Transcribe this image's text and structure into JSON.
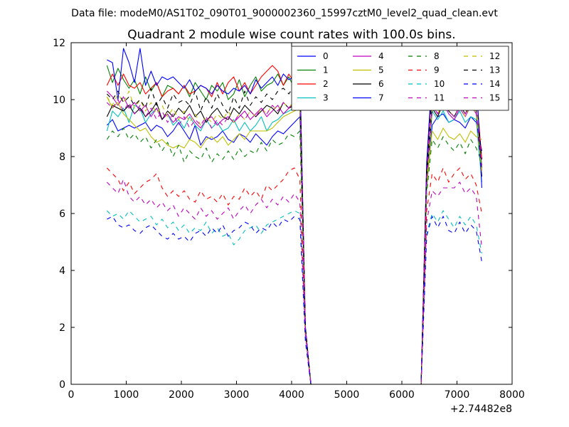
{
  "chart_data": {
    "type": "line",
    "suptitle": "Data file: modeM0/AS1T02_090T01_9000002360_15997cztM0_level2_quad_clean.evt",
    "title": "Quadrant 2 module wise count rates with 100.0s bins.",
    "xlabel": "",
    "ylabel": "",
    "x_offset_label": "+2.74482e8",
    "xlim": [
      0,
      8000
    ],
    "ylim": [
      0,
      12
    ],
    "xticks": [
      0,
      1000,
      2000,
      3000,
      4000,
      5000,
      6000,
      7000,
      8000
    ],
    "yticks": [
      0,
      2,
      4,
      6,
      8,
      10,
      12
    ],
    "xtick_labels": [
      "0",
      "1000",
      "2000",
      "3000",
      "4000",
      "5000",
      "6000",
      "7000",
      "8000"
    ],
    "ytick_labels": [
      "0",
      "2",
      "4",
      "6",
      "8",
      "10",
      "12"
    ],
    "legend_position": "top-right",
    "legend_columns": 4,
    "x": [
      650,
      750,
      850,
      950,
      1050,
      1150,
      1250,
      1350,
      1450,
      1550,
      1650,
      1750,
      1850,
      1950,
      2050,
      2150,
      2250,
      2350,
      2450,
      2550,
      2650,
      2750,
      2850,
      2950,
      3050,
      3150,
      3250,
      3350,
      3450,
      3550,
      3650,
      3750,
      3850,
      3950,
      4050,
      4150,
      4250,
      4350,
      6350,
      6450,
      6550,
      6650,
      6750,
      6850,
      6950,
      7050,
      7150,
      7250,
      7350,
      7450
    ],
    "series": [
      {
        "name": "0",
        "color": "#0000ff",
        "dash": false,
        "values": [
          9.1,
          9.3,
          8.9,
          9.0,
          9.1,
          9.0,
          9.1,
          9.2,
          8.9,
          9.1,
          9.0,
          8.7,
          8.9,
          9.2,
          8.9,
          8.6,
          9.1,
          8.4,
          8.7,
          8.6,
          8.7,
          8.9,
          8.6,
          8.5,
          8.8,
          8.7,
          8.5,
          8.8,
          8.6,
          8.4,
          8.7,
          8.9,
          8.8,
          9.0,
          9.2,
          9.4,
          2.0,
          0,
          0,
          6.9,
          9.1,
          9.4,
          9.5,
          9.2,
          9.3,
          9.2,
          9.0,
          9.4,
          9.2,
          8.2
        ]
      },
      {
        "name": "1",
        "color": "#008000",
        "dash": false,
        "values": [
          11.2,
          10.6,
          11.1,
          10.7,
          10.4,
          10.7,
          10.2,
          10.8,
          10.3,
          10.6,
          10.1,
          10.5,
          10.4,
          10.2,
          10.5,
          10.1,
          10.6,
          10.3,
          10.0,
          10.5,
          10.3,
          10.6,
          10.0,
          10.2,
          10.7,
          10.1,
          10.5,
          10.8,
          10.3,
          10.5,
          10.6,
          10.9,
          10.5,
          10.8,
          10.4,
          11.1,
          1.9,
          0,
          0,
          7.7,
          10.9,
          10.3,
          10.8,
          10.5,
          10.3,
          10.6,
          10.3,
          10.8,
          10.4,
          7.6
        ]
      },
      {
        "name": "2",
        "color": "#ff0000",
        "dash": false,
        "values": [
          10.5,
          10.9,
          10.5,
          10.9,
          10.5,
          10.4,
          10.6,
          10.2,
          10.4,
          10.6,
          10.1,
          10.3,
          10.4,
          10.2,
          10.5,
          10.2,
          10.3,
          10.5,
          10.4,
          10.1,
          10.6,
          10.2,
          10.6,
          10.8,
          10.3,
          10.6,
          10.2,
          10.5,
          10.8,
          11.0,
          11.2,
          11.0,
          10.5,
          10.9,
          10.6,
          10.9,
          1.9,
          0,
          0,
          7.6,
          10.7,
          10.5,
          10.8,
          10.4,
          10.6,
          10.1,
          10.5,
          10.8,
          10.3,
          7.9
        ]
      },
      {
        "name": "3",
        "color": "#00bfbf",
        "dash": false,
        "values": [
          8.9,
          9.6,
          9.4,
          9.7,
          9.2,
          9.8,
          9.7,
          9.2,
          9.5,
          9.7,
          9.3,
          9.5,
          9.1,
          9.3,
          9.0,
          9.4,
          9.1,
          8.9,
          9.3,
          9.0,
          9.2,
          8.9,
          9.0,
          9.3,
          8.9,
          9.2,
          8.9,
          9.1,
          9.4,
          8.9,
          9.2,
          9.3,
          9.5,
          9.6,
          9.7,
          9.8,
          1.9,
          0,
          0,
          7.1,
          9.6,
          9.3,
          9.6,
          9.2,
          9.3,
          9.6,
          9.2,
          9.4,
          9.3,
          7.1
        ]
      },
      {
        "name": "4",
        "color": "#bf00bf",
        "dash": false,
        "values": [
          10.3,
          10.1,
          9.8,
          10.1,
          9.7,
          9.9,
          9.6,
          9.8,
          9.4,
          9.7,
          9.3,
          9.5,
          9.2,
          9.4,
          9.3,
          9.5,
          9.2,
          9.0,
          9.3,
          9.4,
          9.1,
          9.3,
          9.4,
          9.2,
          9.4,
          9.6,
          9.3,
          9.5,
          9.7,
          9.4,
          9.6,
          9.8,
          9.5,
          9.7,
          9.9,
          10.0,
          1.9,
          0,
          0,
          7.3,
          9.8,
          9.5,
          9.9,
          9.5,
          9.3,
          9.7,
          9.4,
          9.8,
          9.5,
          7.5
        ]
      },
      {
        "name": "5",
        "color": "#bfbf00",
        "dash": false,
        "values": [
          10.1,
          9.7,
          9.9,
          9.5,
          9.3,
          9.1,
          8.9,
          9.0,
          8.7,
          8.5,
          8.6,
          8.4,
          8.3,
          8.4,
          8.3,
          8.6,
          8.5,
          8.3,
          8.6,
          8.7,
          8.5,
          8.7,
          8.4,
          8.6,
          8.8,
          8.6,
          8.9,
          8.9,
          8.9,
          8.9,
          9.0,
          9.2,
          9.4,
          9.5,
          9.6,
          9.7,
          1.9,
          0,
          0,
          7.0,
          8.9,
          8.6,
          9.0,
          8.7,
          8.6,
          8.8,
          8.5,
          8.9,
          8.7,
          8.6
        ]
      },
      {
        "name": "6",
        "color": "#000000",
        "dash": false,
        "values": [
          9.4,
          9.8,
          9.7,
          9.6,
          9.8,
          9.5,
          9.7,
          9.4,
          9.6,
          9.9,
          9.3,
          9.6,
          9.4,
          9.7,
          9.5,
          9.8,
          9.4,
          9.6,
          9.2,
          9.5,
          9.7,
          9.4,
          9.3,
          9.7,
          9.5,
          9.8,
          9.6,
          9.4,
          9.6,
          9.8,
          9.7,
          9.5,
          9.9,
          9.7,
          9.8,
          10.1,
          1.9,
          0,
          0,
          7.2,
          9.7,
          9.4,
          9.9,
          9.6,
          9.4,
          9.8,
          9.5,
          9.9,
          9.6,
          7.3
        ]
      },
      {
        "name": "7",
        "color": "#0000ff",
        "dash": false,
        "values": [
          11.4,
          11.3,
          10.0,
          11.8,
          11.3,
          10.6,
          11.8,
          10.5,
          11.0,
          10.5,
          10.8,
          10.7,
          10.8,
          10.6,
          10.4,
          10.7,
          10.3,
          10.5,
          10.4,
          10.2,
          10.5,
          10.3,
          10.2,
          10.4,
          10.3,
          10.5,
          10.2,
          10.7,
          10.4,
          10.6,
          10.8,
          10.5,
          10.9,
          10.7,
          10.8,
          11.1,
          2.0,
          0,
          0,
          7.8,
          10.9,
          10.7,
          11.8,
          10.8,
          10.6,
          11.1,
          10.7,
          11.2,
          10.9,
          6.9
        ]
      },
      {
        "name": "8",
        "color": "#008000",
        "dash": true,
        "values": [
          8.6,
          8.9,
          8.7,
          9.0,
          8.6,
          8.8,
          8.5,
          8.7,
          8.3,
          8.6,
          8.2,
          8.5,
          8.0,
          8.4,
          7.8,
          8.2,
          8.0,
          7.9,
          8.3,
          7.8,
          8.1,
          7.9,
          8.2,
          7.9,
          8.3,
          8.0,
          8.2,
          8.1,
          8.5,
          8.2,
          8.6,
          8.4,
          8.5,
          8.8,
          8.7,
          8.9,
          1.8,
          0,
          0,
          6.7,
          8.6,
          8.3,
          8.7,
          8.4,
          8.2,
          8.5,
          8.1,
          8.6,
          8.3,
          7.8
        ]
      },
      {
        "name": "9",
        "color": "#ff0000",
        "dash": true,
        "values": [
          7.6,
          7.4,
          7.2,
          6.8,
          7.1,
          6.7,
          6.9,
          7.1,
          7.2,
          7.4,
          6.9,
          6.6,
          6.8,
          6.6,
          6.8,
          6.5,
          6.4,
          6.8,
          6.5,
          6.6,
          6.4,
          6.7,
          6.3,
          6.6,
          6.5,
          6.9,
          6.6,
          6.8,
          6.5,
          7.0,
          6.8,
          7.0,
          7.2,
          7.5,
          7.6,
          7.2,
          1.8,
          0,
          0,
          6.1,
          7.4,
          7.1,
          7.6,
          7.1,
          7.4,
          7.6,
          7.2,
          7.4,
          7.0,
          6.0
        ]
      },
      {
        "name": "10",
        "color": "#00bfbf",
        "dash": true,
        "values": [
          6.1,
          5.9,
          6.0,
          5.8,
          6.1,
          5.9,
          5.7,
          5.8,
          5.9,
          5.6,
          5.8,
          5.5,
          5.7,
          5.4,
          5.6,
          5.3,
          5.5,
          5.4,
          5.7,
          5.3,
          5.5,
          5.2,
          5.3,
          4.9,
          5.1,
          5.4,
          5.5,
          5.6,
          5.3,
          5.6,
          5.7,
          5.8,
          5.9,
          6.0,
          6.1,
          6.0,
          1.6,
          0,
          0,
          5.3,
          6.0,
          5.7,
          6.1,
          5.8,
          5.5,
          5.9,
          5.6,
          5.9,
          5.6,
          4.6
        ]
      },
      {
        "name": "11",
        "color": "#bf00bf",
        "dash": true,
        "values": [
          7.1,
          6.9,
          6.7,
          7.2,
          6.6,
          6.4,
          6.6,
          6.3,
          6.5,
          6.2,
          6.4,
          6.1,
          6.3,
          5.9,
          6.2,
          6.0,
          5.8,
          6.2,
          5.9,
          6.1,
          5.8,
          6.0,
          6.2,
          5.8,
          6.1,
          6.3,
          6.0,
          6.3,
          6.5,
          6.2,
          6.5,
          6.3,
          6.6,
          6.4,
          6.7,
          6.4,
          1.7,
          0,
          0,
          5.7,
          6.8,
          6.6,
          6.9,
          6.9,
          6.9,
          7.1,
          6.7,
          6.9,
          6.6,
          4.8
        ]
      },
      {
        "name": "12",
        "color": "#bfbf00",
        "dash": true,
        "values": [
          10.1,
          9.8,
          10.2,
          9.9,
          10.3,
          9.7,
          10.0,
          9.6,
          9.9,
          9.5,
          9.8,
          9.4,
          9.7,
          9.3,
          9.6,
          9.2,
          9.5,
          9.1,
          9.4,
          9.2,
          9.5,
          9.3,
          9.6,
          9.2,
          9.5,
          9.3,
          9.6,
          9.4,
          9.7,
          9.5,
          9.8,
          9.6,
          9.9,
          9.7,
          10.0,
          10.2,
          1.9,
          0,
          0,
          7.1,
          9.8,
          9.5,
          9.9,
          9.6,
          9.4,
          9.8,
          9.4,
          9.9,
          9.5,
          7.4
        ]
      },
      {
        "name": "13",
        "color": "#000000",
        "dash": true,
        "values": [
          10.2,
          10.0,
          10.3,
          9.9,
          10.1,
          9.8,
          10.0,
          9.7,
          10.4,
          9.8,
          10.1,
          9.7,
          10.2,
          9.9,
          10.0,
          9.8,
          10.3,
          9.6,
          10.1,
          9.7,
          10.2,
          9.8,
          9.5,
          10.1,
          9.7,
          10.3,
          9.8,
          10.1,
          9.9,
          10.2,
          10.0,
          10.3,
          10.4,
          10.2,
          10.5,
          10.6,
          2.0,
          0,
          0,
          7.5,
          10.3,
          10.0,
          10.4,
          10.1,
          9.9,
          10.3,
          10.0,
          10.4,
          10.1,
          7.9
        ]
      },
      {
        "name": "14",
        "color": "#0000ff",
        "dash": true,
        "values": [
          5.8,
          5.9,
          5.6,
          5.5,
          5.6,
          5.4,
          5.3,
          5.5,
          5.6,
          5.4,
          5.2,
          5.1,
          5.3,
          5.1,
          5.2,
          5.0,
          5.3,
          5.4,
          5.2,
          5.5,
          5.3,
          5.6,
          5.2,
          5.4,
          5.5,
          5.7,
          5.6,
          5.3,
          5.5,
          5.4,
          5.7,
          5.5,
          5.8,
          5.7,
          5.9,
          5.8,
          1.5,
          0,
          0,
          5.2,
          5.9,
          5.5,
          5.9,
          5.4,
          5.3,
          5.7,
          5.3,
          5.6,
          5.4,
          4.3
        ]
      },
      {
        "name": "15",
        "color": "#bf00bf",
        "dash": true,
        "values": [
          9.9,
          9.7,
          10.0,
          9.6,
          9.9,
          9.5,
          9.8,
          9.4,
          9.7,
          9.3,
          9.6,
          9.2,
          9.5,
          9.1,
          9.4,
          9.0,
          9.3,
          9.1,
          9.4,
          9.0,
          9.3,
          9.1,
          9.4,
          9.2,
          9.5,
          9.3,
          9.6,
          9.4,
          9.7,
          9.5,
          9.8,
          9.6,
          9.9,
          9.7,
          10.0,
          10.1,
          1.9,
          0,
          0,
          7.3,
          9.9,
          9.5,
          10.0,
          9.6,
          9.4,
          9.8,
          9.5,
          9.9,
          9.6,
          7.7
        ]
      }
    ]
  }
}
